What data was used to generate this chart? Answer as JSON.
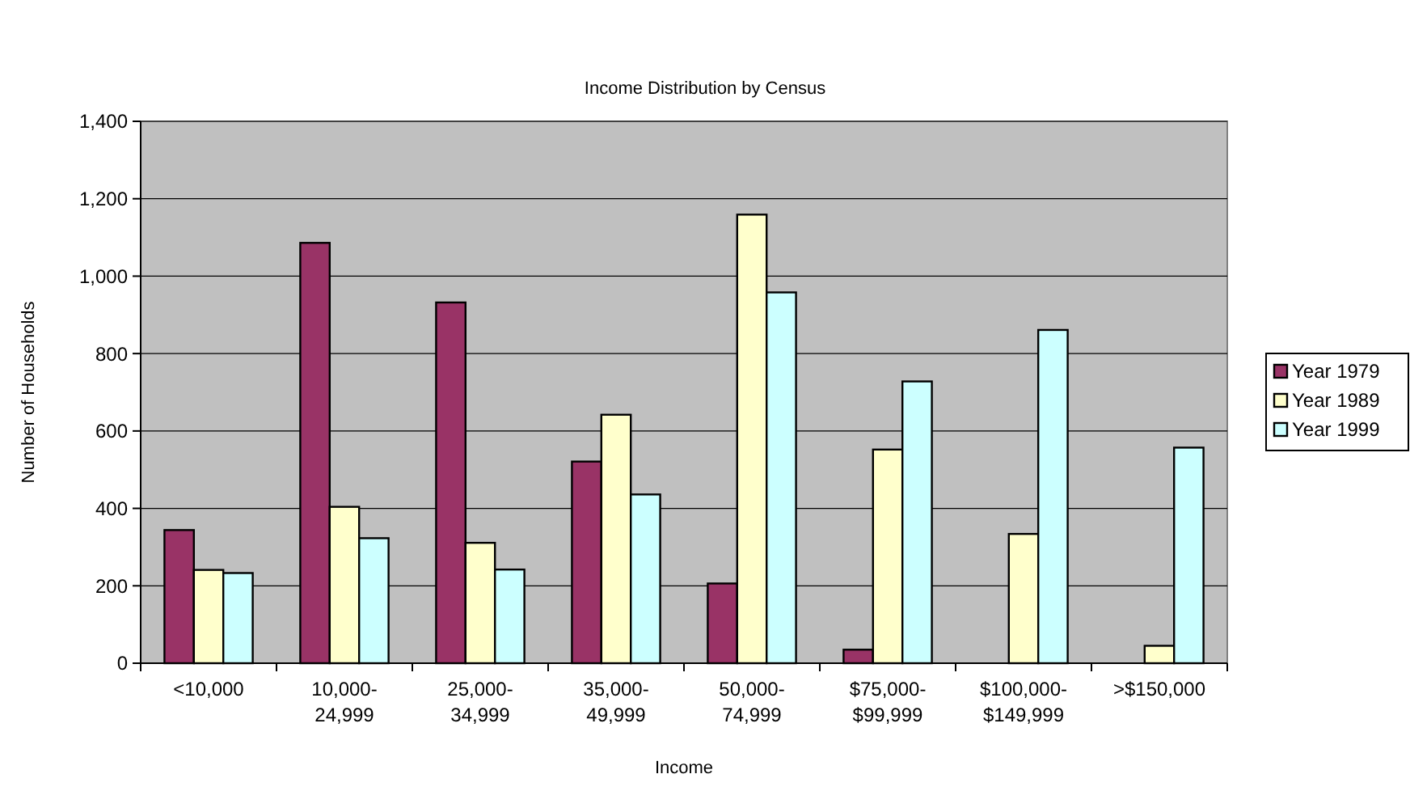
{
  "chart_data": {
    "type": "bar",
    "title": "Income Distribution by Census",
    "xlabel": "Income",
    "ylabel": "Number of Households",
    "categories": [
      "<10,000",
      "10,000- 24,999",
      "25,000- 34,999",
      "35,000- 49,999",
      "50,000- 74,999",
      "$75,000- $99,999",
      "$100,000- $149,999",
      ">$150,000"
    ],
    "series": [
      {
        "name": "Year 1979",
        "color": "#993366",
        "values": [
          344,
          1086,
          932,
          521,
          206,
          35,
          0,
          0
        ]
      },
      {
        "name": "Year 1989",
        "color": "#ffffcc",
        "values": [
          241,
          404,
          311,
          642,
          1159,
          552,
          334,
          45
        ]
      },
      {
        "name": "Year 1999",
        "color": "#ccffff",
        "values": [
          233,
          323,
          242,
          436,
          958,
          728,
          861,
          557
        ]
      }
    ],
    "ylim": [
      0,
      1400
    ],
    "yticks": [
      {
        "value": 0,
        "label": "0"
      },
      {
        "value": 200,
        "label": "200"
      },
      {
        "value": 400,
        "label": "400"
      },
      {
        "value": 600,
        "label": "600"
      },
      {
        "value": 800,
        "label": "800"
      },
      {
        "value": 1000,
        "label": "1,000"
      },
      {
        "value": 1200,
        "label": "1,200"
      },
      {
        "value": 1400,
        "label": "1,400"
      }
    ],
    "grid": "y",
    "legend": "right"
  }
}
